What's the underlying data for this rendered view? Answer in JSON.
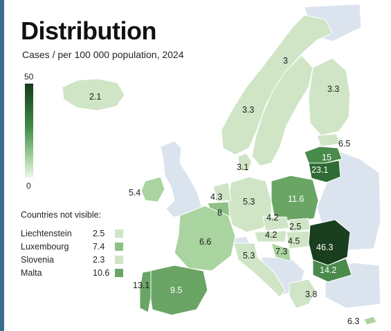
{
  "title": "Distribution",
  "subtitle": "Cases / per 100 000 population, 2024",
  "scale": {
    "max_label": "50",
    "min_label": "0",
    "max_color": "#163a1a",
    "min_color": "#eef6ea"
  },
  "not_visible": {
    "title": "Countries not visible:",
    "items": [
      {
        "name": "Liechtenstein",
        "value": "2.5",
        "color": "#cfe5c6"
      },
      {
        "name": "Luxembourg",
        "value": "7.4",
        "color": "#8ec185"
      },
      {
        "name": "Slovenia",
        "value": "2.3",
        "color": "#cfe5c6"
      },
      {
        "name": "Malta",
        "value": "10.6",
        "color": "#6aa565"
      }
    ]
  },
  "map_labels": {
    "iceland": "2.1",
    "norway": "3",
    "sweden": "3.3",
    "finland": "3.3",
    "estonia": "6.5",
    "latvia": "15",
    "lithuania": "23.1",
    "denmark": "3.1",
    "ireland": "5.4",
    "netherlands": "4.3",
    "belgium": "8",
    "germany": "5.3",
    "poland": "11.6",
    "czechia": "4.2",
    "slovakia": "2.5",
    "austria": "4.2",
    "hungary": "4.5",
    "croatia": "7.3",
    "romania": "46.3",
    "bulgaria": "14.2",
    "france": "6.6",
    "italy": "5.3",
    "spain": "9.5",
    "portugal": "13.1",
    "greece": "3.8",
    "cyprus": "6.3"
  },
  "colors": {
    "background": "#ffffff",
    "non_eu": "#dbe4ee",
    "very_light": "#cfe5c6",
    "light": "#a9d39f",
    "medium": "#6aa565",
    "medium_dark": "#4a8a4c",
    "dark": "#2f6b34",
    "darkest": "#1a3f1f",
    "border": "#ffffff"
  }
}
